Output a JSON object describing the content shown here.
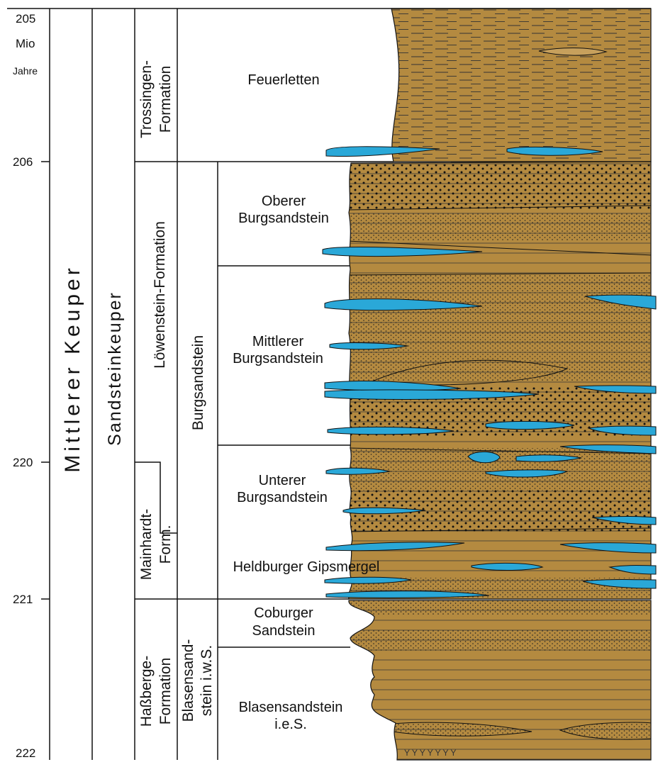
{
  "colors": {
    "sediment": "#b48a40",
    "limestone": "#2aa8d8",
    "line": "#111111",
    "background": "#ffffff"
  },
  "time_scale": {
    "top_value": "205",
    "unit_line1": "Mio",
    "unit_line2": "Jahre",
    "ticks": [
      "206",
      "220",
      "221",
      "222"
    ]
  },
  "columns": {
    "series": "Mittlerer Keuper",
    "group": "Sandsteinkeuper",
    "formations": {
      "trossingen": [
        "Trossingen-",
        "Formation"
      ],
      "loewenstein": "Löwenstein-Formation",
      "mainhardt": [
        "Mainhardt-",
        "Form."
      ],
      "hassberge": [
        "Haßberge-",
        "Formation"
      ]
    },
    "subformations": {
      "burgsandstein": "Burgsandstein",
      "blasensandstein": [
        "Blasensand-",
        "stein i.w.S."
      ]
    },
    "members": {
      "feuerletten": "Feuerletten",
      "oberer": [
        "Oberer",
        "Burgsandstein"
      ],
      "mittlerer": [
        "Mittlerer",
        "Burgsandstein"
      ],
      "unterer": [
        "Unterer",
        "Burgsandstein"
      ],
      "heldburger": "Heldburger Gipsmergel",
      "coburger": [
        "Coburger",
        "Sandstein"
      ],
      "blasensandstein_ies": [
        "Blasensandstein",
        "i.e.S."
      ]
    }
  }
}
